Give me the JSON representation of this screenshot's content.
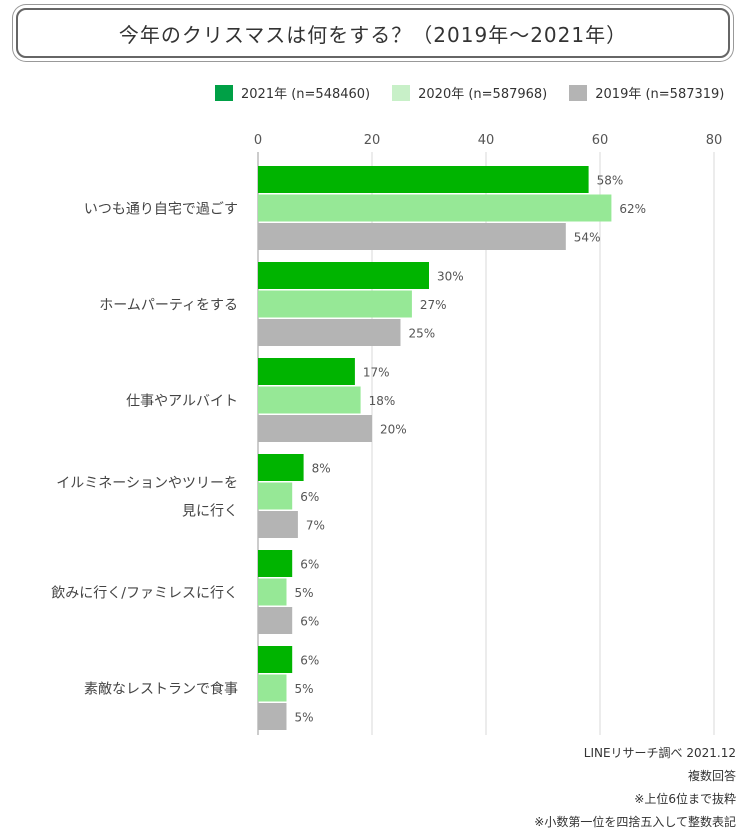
{
  "chart_data": {
    "type": "bar",
    "orientation": "horizontal",
    "title": "今年のクリスマスは何をする？（2019年〜2021年）",
    "categories": [
      [
        "いつも通り自宅で過ごす"
      ],
      [
        "ホームパーティをする"
      ],
      [
        "仕事やアルバイト"
      ],
      [
        "イルミネーションやツリーを",
        "見に行く"
      ],
      [
        "飲みに行く/ファミレスに行く"
      ],
      [
        "素敵なレストランで食事"
      ]
    ],
    "series": [
      {
        "name": "2021年 (n=548460)",
        "color": "#00b400",
        "values": [
          58,
          30,
          17,
          8,
          6,
          6
        ],
        "labels": [
          "58%",
          "30%",
          "17%",
          "8%",
          "6%",
          "6%"
        ]
      },
      {
        "name": "2020年 (n=587968)",
        "color": "#96e896",
        "values": [
          62,
          27,
          18,
          6,
          5,
          5
        ],
        "labels": [
          "62%",
          "27%",
          "18%",
          "6%",
          "5%",
          "5%"
        ]
      },
      {
        "name": "2019年 (n=587319)",
        "color": "#b4b4b4",
        "values": [
          54,
          25,
          20,
          7,
          6,
          5
        ],
        "labels": [
          "54%",
          "25%",
          "20%",
          "7%",
          "6%",
          "5%"
        ]
      }
    ],
    "legend_swatch_colors": [
      "#00a046",
      "#c8f0c8",
      "#b4b4b4"
    ],
    "xlim": [
      0,
      80
    ],
    "xticks": [
      0,
      20,
      40,
      60,
      80
    ],
    "xtick_labels": [
      "0",
      "20",
      "40",
      "60",
      "80"
    ],
    "grid": true,
    "legend_position": "top"
  },
  "notes": [
    "LINEリサーチ調べ 2021.12",
    "複数回答",
    "※上位6位まで抜粋",
    "※小数第一位を四捨五入して整数表記"
  ]
}
